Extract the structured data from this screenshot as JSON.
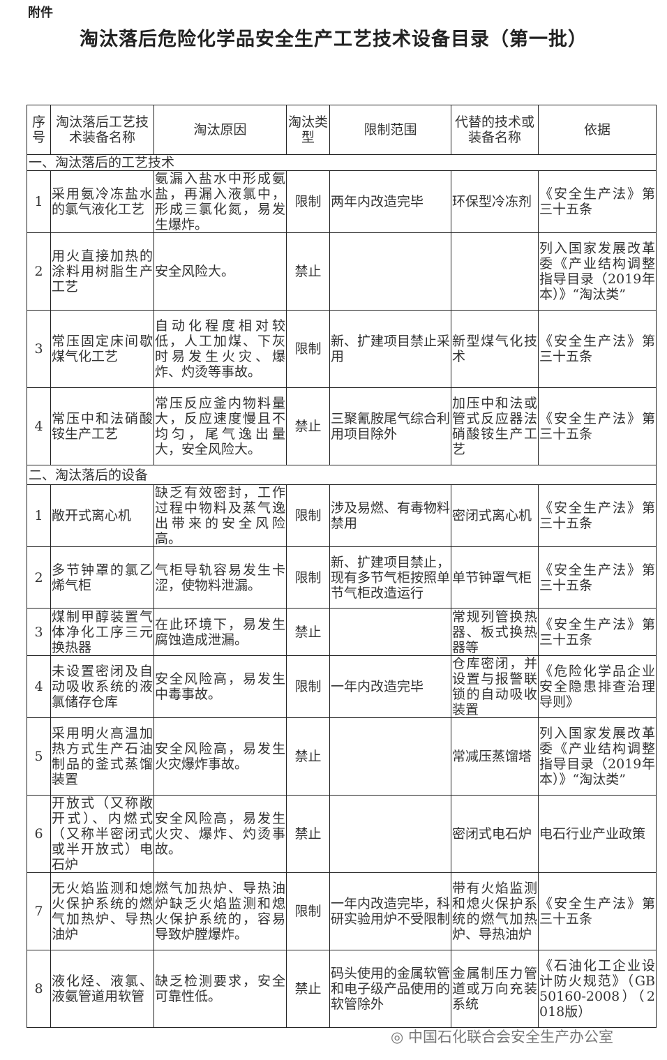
{
  "attachment": "附件",
  "title": "淘汰落后危险化学品安全生产工艺技术设备目录（第一批）",
  "headers": [
    "序号",
    "淘汰落后工艺技术装备名称",
    "淘汰原因",
    "淘汰类型",
    "限制范围",
    "代替的技术或装备名称",
    "依据"
  ],
  "sections": [
    {
      "label": "一、淘汰落后的工艺技术",
      "rows": [
        [
          "1",
          "采用氨冷冻盐水的氯气液化工艺",
          "氨漏入盐水中形成氨盐，再漏入液氯中，形成三氯化氮，易发生爆炸。",
          "限制",
          "两年内改造完毕",
          "环保型冷冻剂",
          "《安全生产法》第三十五条"
        ],
        [
          "2",
          "用火直接加热的涂料用树脂生产工艺",
          "安全风险大。",
          "禁止",
          "",
          "",
          "列入国家发展改革委《产业结构调整指导目录（2019年本）》“淘汰类”"
        ],
        [
          "3",
          "常压固定床间歇煤气化工艺",
          "自动化程度相对较低，人工加煤、下灰时易发生火灾、爆炸、灼烫等事故。",
          "限制",
          "新、扩建项目禁止采用",
          "新型煤气化技术",
          "《安全生产法》第三十五条"
        ],
        [
          "4",
          "常压中和法硝酸铵生产工艺",
          "常压反应釜内物料量大，反应速度慢且不均匀，尾气逸出量大，安全风险大。",
          "禁止",
          "三聚氰胺尾气综合利用项目除外",
          "加压中和法或管式反应器法硝酸铵生产工艺",
          "《安全生产法》第三十五条"
        ]
      ]
    },
    {
      "label": "二、淘汰落后的设备",
      "rows": [
        [
          "1",
          "敞开式离心机",
          "缺乏有效密封，工作过程中物料及蒸气逸出带来的安全风险高。",
          "限制",
          "涉及易燃、有毒物料禁用",
          "密闭式离心机",
          "《安全生产法》第三十五条"
        ],
        [
          "2",
          "多节钟罩的氯乙烯气柜",
          "气柜导轨容易发生卡涩，使物料泄漏。",
          "限制",
          "新、扩建项目禁止，现有多节气柜按照单节气柜改造运行",
          "单节钟罩气柜",
          "《安全生产法》第三十五条"
        ],
        [
          "3",
          "煤制甲醇装置气体净化工序三元换热器",
          "在此环境下，易发生腐蚀造成泄漏。",
          "禁止",
          "",
          "常规列管换热器、板式换热器等",
          "《安全生产法》第三十五条"
        ],
        [
          "4",
          "未设置密闭及自动吸收系统的液氯储存仓库",
          "安全风险高，易发生中毒事故。",
          "限制",
          "一年内改造完毕",
          "仓库密闭，并设置与报警联锁的自动吸收装置",
          "《危险化学品企业安全隐患排查治理导则》"
        ],
        [
          "5",
          "采用明火高温加热方式生产石油制品的釜式蒸馏装置",
          "安全风险高，易发生火灾爆炸事故。",
          "禁止",
          "",
          "常减压蒸馏塔",
          "列入国家发展改革委《产业结构调整指导目录（2019年本）》“淘汰类”"
        ],
        [
          "6",
          "开放式（又称敞开式）、内燃式（又称半密闭式或半开放式）电石炉",
          "安全风险高，易发生火灾、爆炸、灼烫事故。",
          "禁止",
          "",
          "密闭式电石炉",
          "电石行业产业政策"
        ],
        [
          "7",
          "无火焰监测和熄火保护系统的燃气加热炉、导热油炉",
          "燃气加热炉、导热油炉缺乏火焰监测和熄火保护系统的，容易导致炉膛爆炸。",
          "限制",
          "一年内改造完毕，科研实验用炉不受限制",
          "带有火焰监测和熄火保护系统的燃气加热炉、导热油炉",
          "《安全生产法》第三十五条"
        ],
        [
          "8",
          "液化烃、液氯、液氨管道用软管",
          "缺乏检测要求，安全可靠性低。",
          "禁止",
          "码头使用的金属软管和电子级产品使用的软管除外",
          "金属制压力管道或万向充装系统",
          "《石油化工企业设计防火规范》（GB 50160-2008）（2018版）"
        ]
      ]
    }
  ],
  "watermark": "中国石化联合会安全生产办公室"
}
